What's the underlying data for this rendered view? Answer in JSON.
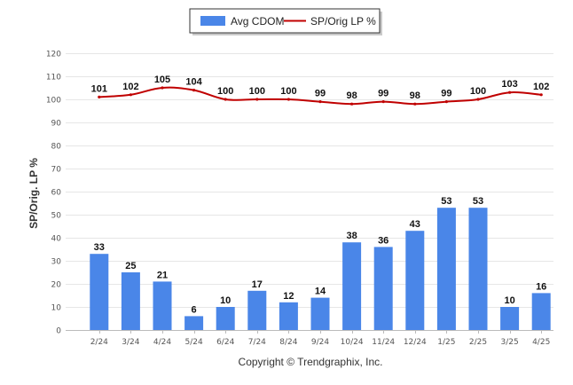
{
  "chart_data": {
    "type": "bar+line",
    "ylabel": "SP/Orig. LP %",
    "ylim": [
      0,
      120
    ],
    "yticks": [
      0,
      10,
      20,
      30,
      40,
      50,
      60,
      70,
      80,
      90,
      100,
      110,
      120
    ],
    "grid": true,
    "legend_position": "top-center",
    "categories": [
      "2/24",
      "3/24",
      "4/24",
      "5/24",
      "6/24",
      "7/24",
      "8/24",
      "9/24",
      "10/24",
      "11/24",
      "12/24",
      "1/25",
      "2/25",
      "3/25",
      "4/25"
    ],
    "series": [
      {
        "name": "Avg CDOM",
        "type": "bar",
        "color": "#4a86e8",
        "values": [
          33,
          25,
          21,
          6,
          10,
          17,
          12,
          14,
          38,
          36,
          43,
          53,
          53,
          10,
          16
        ]
      },
      {
        "name": "SP/Orig LP %",
        "type": "line",
        "color": "#c00000",
        "values": [
          101,
          102,
          105,
          104,
          100,
          100,
          100,
          99,
          98,
          99,
          98,
          99,
          100,
          103,
          102
        ]
      }
    ]
  },
  "footer": "Copyright © Trendgraphix, Inc."
}
